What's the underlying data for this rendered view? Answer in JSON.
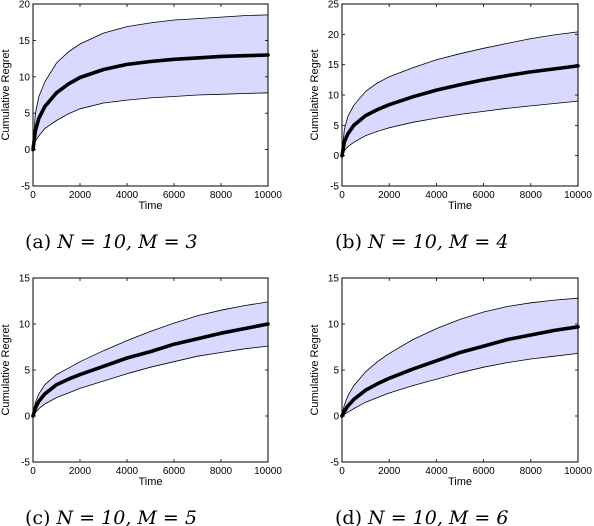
{
  "chart_data": [
    {
      "type": "line",
      "caption_tag": "(a)",
      "caption": "N = 10, M = 3",
      "xlabel": "Time",
      "ylabel": "Cumulative Regret",
      "xlim": [
        0,
        10000
      ],
      "ylim": [
        -5,
        20
      ],
      "xticks": [
        0,
        2000,
        4000,
        6000,
        8000,
        10000
      ],
      "yticks": [
        -5,
        0,
        5,
        10,
        15,
        20
      ],
      "grid": false,
      "band_color": "#d9d9ff",
      "line_color": "#000000",
      "x": [
        0,
        100,
        250,
        500,
        1000,
        1500,
        2000,
        3000,
        4000,
        5000,
        6000,
        7000,
        8000,
        9000,
        10000
      ],
      "series": [
        {
          "values": [
            0,
            2.6,
            4.3,
            5.9,
            7.8,
            9.0,
            9.9,
            11.0,
            11.7,
            12.1,
            12.4,
            12.6,
            12.8,
            12.9,
            13.0
          ]
        }
      ],
      "band_upper": [
        0.3,
        5.0,
        7.3,
        9.3,
        11.9,
        13.4,
        14.5,
        16.0,
        16.9,
        17.4,
        17.8,
        18.0,
        18.2,
        18.4,
        18.5
      ],
      "band_lower": [
        -0.3,
        1.2,
        1.9,
        2.9,
        4.0,
        4.9,
        5.6,
        6.4,
        6.8,
        7.1,
        7.3,
        7.5,
        7.6,
        7.7,
        7.8
      ]
    },
    {
      "type": "line",
      "caption_tag": "(b)",
      "caption": "N = 10, M = 4",
      "xlabel": "Time",
      "ylabel": "Cumulative Regret",
      "xlim": [
        0,
        10000
      ],
      "ylim": [
        -5,
        25
      ],
      "xticks": [
        0,
        2000,
        4000,
        6000,
        8000,
        10000
      ],
      "yticks": [
        -5,
        0,
        5,
        10,
        15,
        20,
        25
      ],
      "grid": false,
      "band_color": "#d9d9ff",
      "line_color": "#000000",
      "x": [
        0,
        100,
        250,
        500,
        1000,
        1500,
        2000,
        3000,
        4000,
        5000,
        6000,
        7000,
        8000,
        9000,
        10000
      ],
      "series": [
        {
          "values": [
            0,
            2.3,
            3.6,
            5.0,
            6.6,
            7.6,
            8.4,
            9.7,
            10.8,
            11.7,
            12.5,
            13.2,
            13.8,
            14.3,
            14.8
          ]
        }
      ],
      "band_upper": [
        0.3,
        4.4,
        6.5,
        8.3,
        10.6,
        12.0,
        13.0,
        14.5,
        15.8,
        16.8,
        17.7,
        18.5,
        19.3,
        19.9,
        20.4
      ],
      "band_lower": [
        -0.3,
        0.8,
        1.5,
        2.2,
        3.3,
        4.0,
        4.6,
        5.5,
        6.2,
        6.8,
        7.3,
        7.8,
        8.2,
        8.6,
        9.0
      ]
    },
    {
      "type": "line",
      "caption_tag": "(c)",
      "caption": "N = 10, M = 5",
      "xlabel": "Time",
      "ylabel": "Cumulative Regret",
      "xlim": [
        0,
        10000
      ],
      "ylim": [
        -5,
        15
      ],
      "xticks": [
        0,
        2000,
        4000,
        6000,
        8000,
        10000
      ],
      "yticks": [
        -5,
        0,
        5,
        10,
        15
      ],
      "grid": false,
      "band_color": "#d9d9ff",
      "line_color": "#000000",
      "x": [
        0,
        100,
        250,
        500,
        1000,
        1500,
        2000,
        3000,
        4000,
        5000,
        6000,
        7000,
        8000,
        9000,
        10000
      ],
      "series": [
        {
          "values": [
            0,
            0.9,
            1.6,
            2.4,
            3.4,
            4.0,
            4.5,
            5.4,
            6.3,
            7.0,
            7.8,
            8.4,
            9.0,
            9.5,
            10.0
          ]
        }
      ],
      "band_upper": [
        0.2,
        1.5,
        2.4,
        3.4,
        4.5,
        5.2,
        5.9,
        7.1,
        8.2,
        9.2,
        10.1,
        10.9,
        11.5,
        12.0,
        12.4
      ],
      "band_lower": [
        -0.2,
        0.4,
        0.8,
        1.3,
        2.0,
        2.5,
        3.0,
        3.8,
        4.6,
        5.3,
        5.9,
        6.5,
        6.9,
        7.3,
        7.6
      ]
    },
    {
      "type": "line",
      "caption_tag": "(d)",
      "caption": "N = 10, M = 6",
      "xlabel": "Time",
      "ylabel": "Cumulative Regret",
      "xlim": [
        0,
        10000
      ],
      "ylim": [
        -5,
        15
      ],
      "xticks": [
        0,
        2000,
        4000,
        6000,
        8000,
        10000
      ],
      "yticks": [
        -5,
        0,
        5,
        10,
        15
      ],
      "grid": false,
      "band_color": "#d9d9ff",
      "line_color": "#000000",
      "x": [
        0,
        100,
        250,
        500,
        1000,
        1500,
        2000,
        3000,
        4000,
        5000,
        6000,
        7000,
        8000,
        9000,
        10000
      ],
      "series": [
        {
          "values": [
            0,
            0.5,
            1.1,
            1.8,
            2.8,
            3.5,
            4.1,
            5.1,
            6.0,
            6.9,
            7.6,
            8.3,
            8.8,
            9.3,
            9.7
          ]
        }
      ],
      "band_upper": [
        0.2,
        1.2,
        2.2,
        3.3,
        4.8,
        5.9,
        6.8,
        8.3,
        9.5,
        10.5,
        11.3,
        11.9,
        12.3,
        12.6,
        12.8
      ],
      "band_lower": [
        -0.2,
        0.2,
        0.4,
        0.8,
        1.5,
        2.0,
        2.5,
        3.3,
        4.0,
        4.7,
        5.3,
        5.8,
        6.2,
        6.5,
        6.8
      ]
    }
  ]
}
